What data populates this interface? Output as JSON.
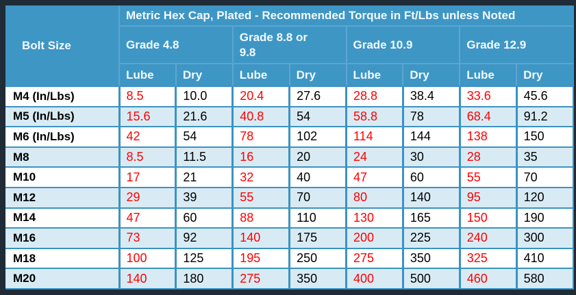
{
  "chart_data": {
    "type": "table",
    "title": "Metric Hex Cap, Plated - Recommended Torque in Ft/Lbs unless Noted",
    "corner_header": "Bolt Size",
    "group_headers": [
      "Grade 4.8",
      "Grade 8.8 or 9.8",
      "Grade 10.9",
      "Grade 12.9"
    ],
    "sub_headers": [
      "Lube",
      "Dry",
      "Lube",
      "Dry",
      "Lube",
      "Dry",
      "Lube",
      "Dry"
    ],
    "rows": [
      {
        "bolt_size": "M4 (In/Lbs)",
        "values": [
          "8.5",
          "10.0",
          "20.4",
          "27.6",
          "28.8",
          "38.4",
          "33.6",
          "45.6"
        ]
      },
      {
        "bolt_size": "M5 (In/Lbs)",
        "values": [
          "15.6",
          "21.6",
          "40.8",
          "54",
          "58.8",
          "78",
          "68.4",
          "91.2"
        ]
      },
      {
        "bolt_size": "M6 (In/Lbs)",
        "values": [
          "42",
          "54",
          "78",
          "102",
          "114",
          "144",
          "138",
          "150"
        ]
      },
      {
        "bolt_size": "M8",
        "values": [
          "8.5",
          "11.5",
          "16",
          "20",
          "24",
          "30",
          "28",
          "35"
        ]
      },
      {
        "bolt_size": "M10",
        "values": [
          "17",
          "21",
          "32",
          "40",
          "47",
          "60",
          "55",
          "70"
        ]
      },
      {
        "bolt_size": "M12",
        "values": [
          "29",
          "39",
          "55",
          "70",
          "80",
          "140",
          "95",
          "120"
        ]
      },
      {
        "bolt_size": "M14",
        "values": [
          "47",
          "60",
          "88",
          "110",
          "130",
          "165",
          "150",
          "190"
        ]
      },
      {
        "bolt_size": "M16",
        "values": [
          "73",
          "92",
          "140",
          "175",
          "200",
          "225",
          "240",
          "300"
        ]
      },
      {
        "bolt_size": "M18",
        "values": [
          "100",
          "125",
          "195",
          "250",
          "275",
          "350",
          "325",
          "410"
        ]
      },
      {
        "bolt_size": "M20",
        "values": [
          "140",
          "180",
          "275",
          "350",
          "400",
          "500",
          "460",
          "580"
        ]
      }
    ],
    "layout_hints": {
      "lube_columns_text_color": "red",
      "dry_columns_text_color": "black",
      "row_striping": "white / light blue alternating"
    }
  },
  "colors": {
    "header_bg": "#3e96c5",
    "header_text": "#f4fafd",
    "header_separator": "#5ba6cf",
    "grid_border": "#3b92c2",
    "outer_frame": "#1f2b36",
    "row_even_bg": "#ffffff",
    "row_odd_bg": "#d8ebf4",
    "lube_value_text": "#ff0000",
    "dry_value_text": "#000000"
  }
}
